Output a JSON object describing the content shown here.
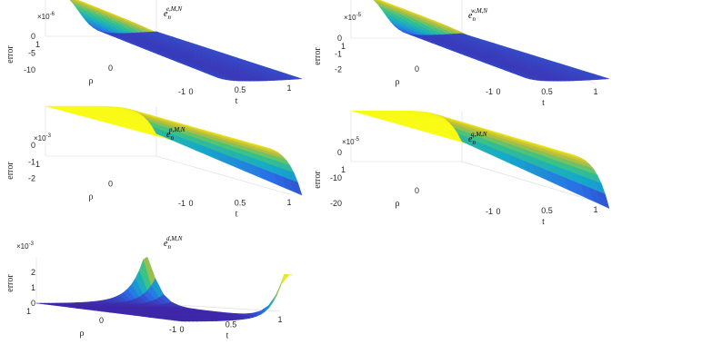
{
  "chart_data": [
    {
      "type": "surface",
      "panel": "e",
      "title_base": "e",
      "title_sub": "n",
      "title_sup": "e,M,N",
      "zlabel": "error",
      "xlabel": "t",
      "ylabel": "ρ",
      "exponent": "×10",
      "exponent_power": "-6",
      "xlim": [
        0,
        1
      ],
      "ylim": [
        -1,
        1
      ],
      "zlim": [
        -14,
        0
      ],
      "xticks": [
        "0",
        "0.5",
        "1"
      ],
      "yticks": [
        "1",
        "0",
        "-1"
      ],
      "zticks": [
        "0",
        "-5",
        "-10"
      ],
      "surface": {
        "shape": "ramp",
        "min": -14,
        "max": 0
      }
    },
    {
      "type": "surface",
      "panel": "w",
      "title_base": "e",
      "title_sub": "n",
      "title_sup": "w,M,N",
      "zlabel": "error",
      "xlabel": "t",
      "ylabel": "ρ",
      "exponent": "×10",
      "exponent_power": "-5",
      "xlim": [
        0,
        1
      ],
      "ylim": [
        -1,
        1
      ],
      "zlim": [
        -3,
        0
      ],
      "xticks": [
        "0",
        "0.5",
        "1"
      ],
      "yticks": [
        "1",
        "0",
        "-1"
      ],
      "zticks": [
        "0",
        "-1",
        "-2"
      ],
      "surface": {
        "shape": "ramp",
        "min": -3,
        "max": 0
      }
    },
    {
      "type": "surface",
      "panel": "p",
      "title_base": "e",
      "title_sub": "n",
      "title_sup": "p,M,N",
      "zlabel": "error",
      "xlabel": "t",
      "ylabel": "ρ",
      "exponent": "×10",
      "exponent_power": "-3",
      "xlim": [
        0,
        1
      ],
      "ylim": [
        -1,
        1
      ],
      "zlim": [
        -3,
        0
      ],
      "xticks": [
        "0",
        "0.5",
        "1"
      ],
      "yticks": [
        "1",
        "0",
        "-1"
      ],
      "zticks": [
        "0",
        "-1",
        "-2"
      ],
      "surface": {
        "shape": "dropoff",
        "min": -3,
        "max": 0
      }
    },
    {
      "type": "surface",
      "panel": "q",
      "title_base": "e",
      "title_sub": "n",
      "title_sup": "q,M,N",
      "zlabel": "error",
      "xlabel": "t",
      "ylabel": "ρ",
      "exponent": "×10",
      "exponent_power": "-5",
      "xlim": [
        0,
        1
      ],
      "ylim": [
        -1,
        1
      ],
      "zlim": [
        -20,
        0
      ],
      "xticks": [
        "0",
        "0.5",
        "1"
      ],
      "yticks": [
        "1",
        "0",
        "-1"
      ],
      "zticks": [
        "0",
        "-10",
        "-20"
      ],
      "surface": {
        "shape": "dropoff",
        "min": -22,
        "max": 0
      }
    },
    {
      "type": "surface",
      "panel": "d",
      "title_base": "e",
      "title_sub": "n",
      "title_sup": "d,M,N",
      "zlabel": "error",
      "xlabel": "t",
      "ylabel": "ρ",
      "exponent": "×10",
      "exponent_power": "-3",
      "xlim": [
        0,
        1
      ],
      "ylim": [
        -1,
        1
      ],
      "zlim": [
        0,
        3
      ],
      "xticks": [
        "0",
        "0.5",
        "1"
      ],
      "yticks": [
        "1",
        "0",
        "-1"
      ],
      "zticks": [
        "0",
        "1",
        "2"
      ],
      "surface": {
        "shape": "spike",
        "min": 0,
        "max": 3
      }
    }
  ]
}
